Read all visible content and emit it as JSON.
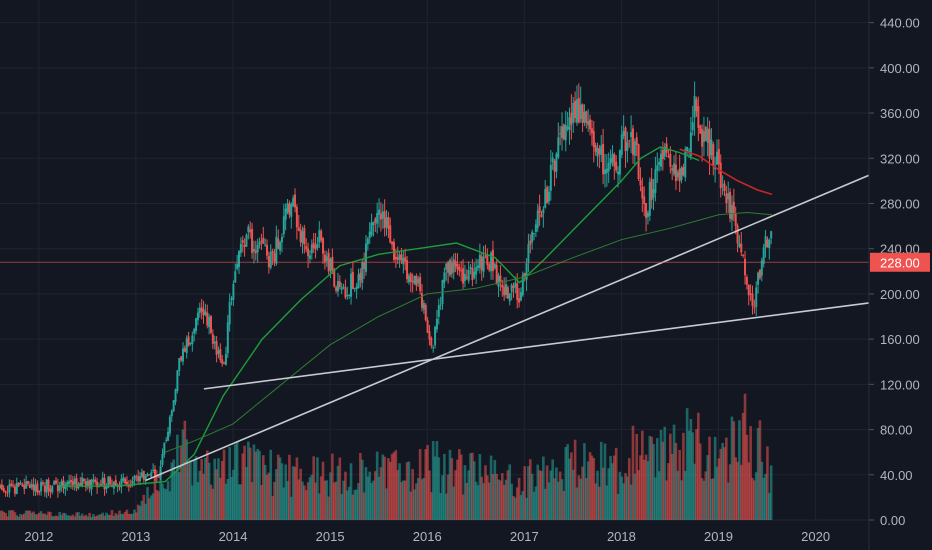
{
  "colors": {
    "background": "#131722",
    "grid": "#1f2430",
    "up": "#26a69a",
    "down": "#ef5350",
    "ma_green": "#1e9e3a",
    "ma_red": "#c62828",
    "ma_thin": "#2e7d32",
    "trendline": "#c9c9d1",
    "text": "#b2b5be",
    "price_tag": "#ef5350"
  },
  "chart_data": {
    "type": "candlestick",
    "title": "",
    "xlabel": "",
    "ylabel": "",
    "ylim": [
      0,
      460
    ],
    "xlim": [
      2011.6,
      2020.55
    ],
    "y_ticks": [
      "0.00",
      "40.00",
      "80.00",
      "120.00",
      "160.00",
      "200.00",
      "240.00",
      "280.00",
      "320.00",
      "360.00",
      "400.00",
      "440.00"
    ],
    "y_tick_values": [
      0,
      40,
      80,
      120,
      160,
      200,
      240,
      280,
      320,
      360,
      400,
      440
    ],
    "x_ticks": [
      "2012",
      "2013",
      "2014",
      "2015",
      "2016",
      "2017",
      "2018",
      "2019",
      "2020"
    ],
    "x_tick_values": [
      2012,
      2013,
      2014,
      2015,
      2016,
      2017,
      2018,
      2019,
      2020
    ],
    "grid": true,
    "current_price": {
      "label": "228.00",
      "value": 228
    },
    "price_series": {
      "x": [
        2011.6,
        2012.0,
        2012.5,
        2013.0,
        2013.25,
        2013.45,
        2013.7,
        2013.8,
        2013.9,
        2014.0,
        2014.15,
        2014.4,
        2014.6,
        2014.75,
        2014.9,
        2015.1,
        2015.3,
        2015.5,
        2015.7,
        2015.9,
        2016.05,
        2016.2,
        2016.45,
        2016.6,
        2016.8,
        2016.95,
        2017.1,
        2017.3,
        2017.5,
        2017.7,
        2017.9,
        2018.1,
        2018.25,
        2018.45,
        2018.6,
        2018.75,
        2018.9,
        2019.05,
        2019.2,
        2019.35,
        2019.45,
        2019.55
      ],
      "values": [
        28,
        30,
        32,
        34,
        42,
        140,
        190,
        160,
        130,
        215,
        250,
        230,
        285,
        240,
        250,
        200,
        215,
        275,
        230,
        210,
        150,
        225,
        215,
        235,
        205,
        200,
        255,
        310,
        370,
        330,
        310,
        345,
        275,
        340,
        300,
        360,
        330,
        300,
        255,
        185,
        230,
        262
      ]
    },
    "volume_series": {
      "x": [
        2011.6,
        2012.5,
        2013.0,
        2013.3,
        2013.5,
        2013.7,
        2014.0,
        2014.5,
        2015.0,
        2015.5,
        2016.0,
        2016.5,
        2017.0,
        2017.5,
        2018.0,
        2018.2,
        2018.5,
        2018.8,
        2019.0,
        2019.3,
        2019.55
      ],
      "values": [
        6,
        5,
        7,
        40,
        60,
        45,
        55,
        40,
        40,
        42,
        50,
        40,
        35,
        50,
        45,
        70,
        55,
        75,
        50,
        80,
        40
      ]
    },
    "moving_averages": [
      {
        "x": [
          2012.2,
          2012.8,
          2013.3,
          2013.6,
          2013.9,
          2014.3,
          2014.7,
          2015.1,
          2015.5,
          2015.9,
          2016.3,
          2016.7,
          2016.95,
          2017.2,
          2017.6,
          2018.0,
          2018.2,
          2018.4,
          2018.6,
          2018.8
        ],
        "values": [
          30,
          30,
          34,
          58,
          110,
          160,
          195,
          225,
          235,
          240,
          245,
          232,
          210,
          230,
          265,
          300,
          320,
          330,
          325,
          318
        ]
      },
      {
        "x": [
          2018.6,
          2018.8,
          2019.0,
          2019.2,
          2019.4,
          2019.55
        ],
        "values": [
          328,
          322,
          310,
          300,
          292,
          288
        ]
      },
      {
        "x": [
          2013.3,
          2013.6,
          2014.0,
          2014.5,
          2015.0,
          2015.5,
          2016.0,
          2016.5,
          2017.0,
          2017.5,
          2018.0,
          2018.5,
          2019.0,
          2019.3,
          2019.55
        ],
        "values": [
          60,
          70,
          85,
          120,
          155,
          180,
          200,
          205,
          215,
          232,
          248,
          258,
          270,
          272,
          270
        ]
      }
    ],
    "trendlines": [
      {
        "x": [
          2013.1,
          2020.55
        ],
        "values": [
          35,
          305
        ]
      },
      {
        "x": [
          2013.7,
          2020.55
        ],
        "values": [
          116,
          192
        ]
      }
    ]
  }
}
